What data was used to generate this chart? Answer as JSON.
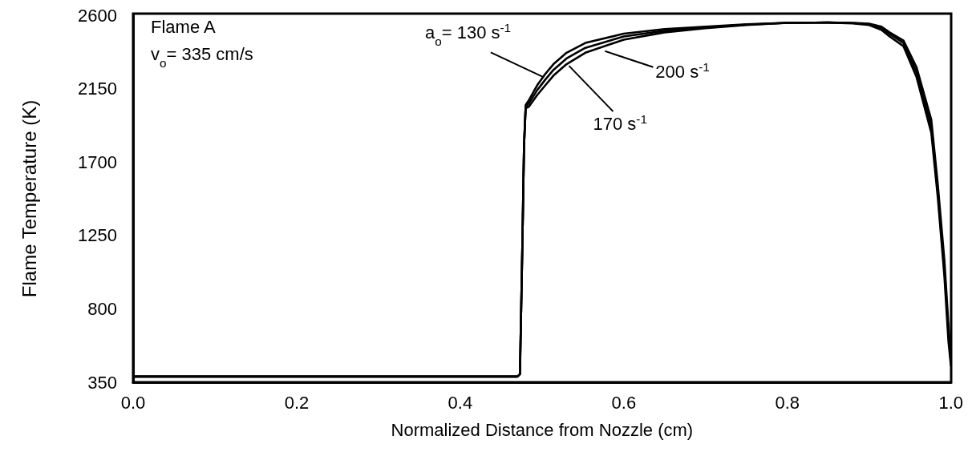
{
  "chart_data": {
    "type": "line",
    "xlabel": "Normalized Distance from Nozzle (cm)",
    "ylabel": "Flame Temperature (K)",
    "xlim": [
      0,
      1
    ],
    "xticks": [
      {
        "value": 0,
        "label": "0.0"
      },
      {
        "value": 0.2,
        "label": "0.2"
      },
      {
        "value": 0.4,
        "label": "0.4"
      },
      {
        "value": 0.6,
        "label": "0.6"
      },
      {
        "value": 0.8,
        "label": "0.8"
      },
      {
        "value": 1,
        "label": "1.0"
      }
    ],
    "ylim": [
      350,
      2600
    ],
    "yticks": [
      350,
      800,
      1250,
      1700,
      2150,
      2600
    ],
    "grid": false,
    "marker": "none",
    "line_style": "solid",
    "annotations": [
      "Flame A",
      "v$_{o}$= 335 cm/s",
      {
        "text": "a$_{o}$= 130  s$^{-1}$",
        "x": 0.502,
        "y": 2220
      },
      {
        "text": "170  s$^{-1}$",
        "x": 0.533,
        "y": 2290
      },
      {
        "text": "200  s$^{-1}$",
        "x": 0.577,
        "y": 2380
      }
    ],
    "series": [
      {
        "color": "#000000",
        "x": [
          0,
          0.47,
          0.473,
          0.476,
          0.478,
          0.48,
          0.484,
          0.494,
          0.504,
          0.514,
          0.53,
          0.553,
          0.6,
          0.65,
          0.7,
          0.75,
          0.8,
          0.85,
          0.88,
          0.9,
          0.915,
          0.925,
          0.942,
          0.958,
          0.976,
          0.984,
          0.992,
          0.997,
          1.0
        ],
        "values": [
          385,
          385,
          400,
          1200,
          1800,
          2050,
          2080,
          2170,
          2240,
          2300,
          2370,
          2430,
          2487,
          2515,
          2530,
          2545,
          2553,
          2555,
          2550,
          2540,
          2510,
          2470,
          2410,
          2220,
          1880,
          1480,
          1000,
          600,
          450
        ]
      },
      {
        "color": "#000000",
        "x": [
          0,
          0.47,
          0.473,
          0.476,
          0.478,
          0.48,
          0.484,
          0.494,
          0.504,
          0.514,
          0.53,
          0.553,
          0.6,
          0.65,
          0.7,
          0.75,
          0.8,
          0.85,
          0.88,
          0.9,
          0.915,
          0.925,
          0.942,
          0.958,
          0.976,
          0.984,
          0.992,
          0.997,
          1.0
        ],
        "values": [
          385,
          385,
          400,
          1200,
          1800,
          2040,
          2060,
          2140,
          2205,
          2265,
          2335,
          2400,
          2470,
          2505,
          2525,
          2542,
          2553,
          2555,
          2552,
          2545,
          2520,
          2485,
          2430,
          2250,
          1920,
          1520,
          1050,
          650,
          470
        ]
      },
      {
        "color": "#000000",
        "x": [
          0,
          0.47,
          0.473,
          0.476,
          0.478,
          0.48,
          0.484,
          0.494,
          0.504,
          0.514,
          0.53,
          0.553,
          0.6,
          0.65,
          0.7,
          0.75,
          0.8,
          0.85,
          0.88,
          0.9,
          0.915,
          0.925,
          0.942,
          0.958,
          0.976,
          0.984,
          0.992,
          0.997,
          1.0
        ],
        "values": [
          385,
          385,
          400,
          1200,
          1800,
          2030,
          2040,
          2110,
          2170,
          2230,
          2300,
          2370,
          2450,
          2495,
          2520,
          2540,
          2553,
          2555,
          2553,
          2548,
          2530,
          2495,
          2445,
          2280,
          1960,
          1560,
          1100,
          700,
          490
        ]
      }
    ]
  }
}
